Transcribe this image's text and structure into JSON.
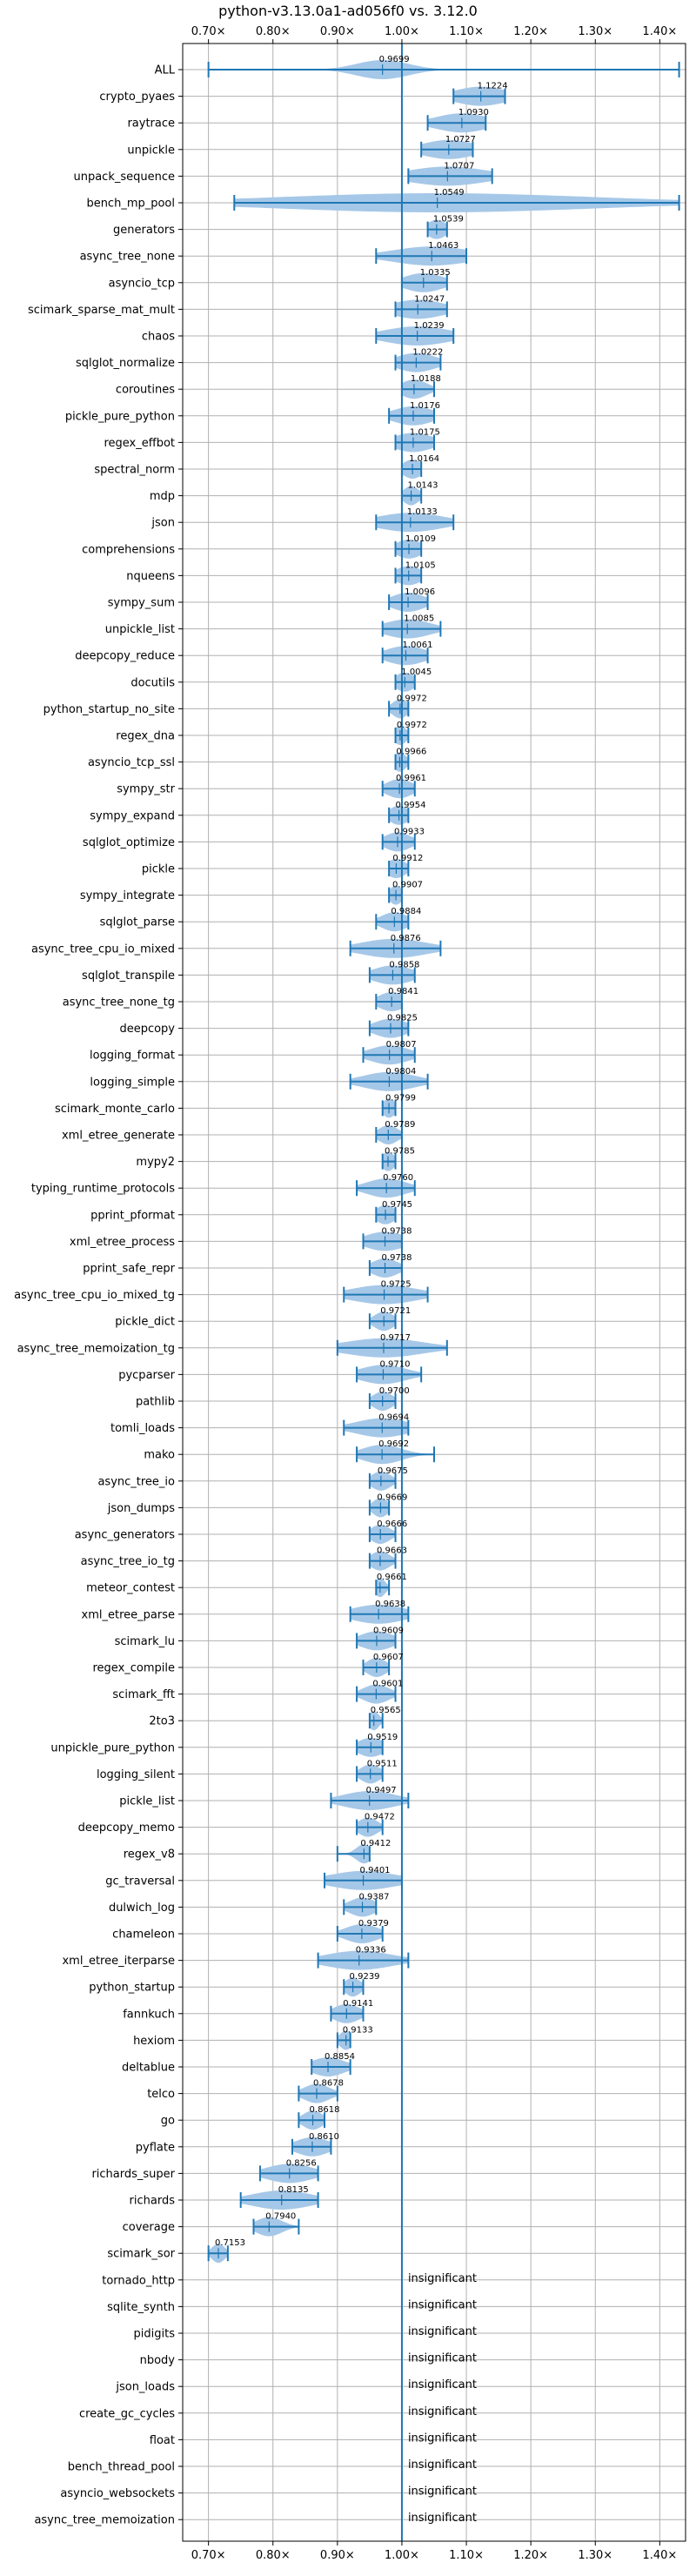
{
  "chart_data": {
    "type": "violin",
    "title": "python-v3.13.0a1-ad056f0 vs. 3.12.0",
    "xlim": [
      0.66,
      1.44
    ],
    "xticks": [
      0.7,
      0.8,
      0.9,
      1.0,
      1.1,
      1.2,
      1.3,
      1.4
    ],
    "xtick_labels": [
      "0.70×",
      "0.80×",
      "0.90×",
      "1.00×",
      "1.10×",
      "1.20×",
      "1.30×",
      "1.40×"
    ],
    "reference_line": 1.0,
    "grid": true,
    "colors": {
      "violin": "#a6c8e8",
      "whisker": "#1f77b4",
      "grid": "#b0b0b0"
    },
    "insignificant_text": "insignificant",
    "benchmarks": [
      {
        "name": "ALL",
        "label": "0.9699",
        "value": 0.9699,
        "min": 0.7,
        "max": 1.43,
        "spread": 0.04
      },
      {
        "name": "crypto_pyaes",
        "label": "1.1224",
        "value": 1.1224,
        "min": 1.08,
        "max": 1.16,
        "spread": 0.04
      },
      {
        "name": "raytrace",
        "label": "1.0930",
        "value": 1.093,
        "min": 1.04,
        "max": 1.13,
        "spread": 0.04
      },
      {
        "name": "unpickle",
        "label": "1.0727",
        "value": 1.0727,
        "min": 1.03,
        "max": 1.11,
        "spread": 0.04
      },
      {
        "name": "unpack_sequence",
        "label": "1.0707",
        "value": 1.0707,
        "min": 1.01,
        "max": 1.14,
        "spread": 0.06
      },
      {
        "name": "bench_mp_pool",
        "label": "1.0549",
        "value": 1.0549,
        "min": 0.74,
        "max": 1.43,
        "spread": 0.24
      },
      {
        "name": "generators",
        "label": "1.0539",
        "value": 1.0539,
        "min": 1.04,
        "max": 1.07,
        "spread": 0.015
      },
      {
        "name": "async_tree_none",
        "label": "1.0463",
        "value": 1.0463,
        "min": 0.96,
        "max": 1.1,
        "spread": 0.06
      },
      {
        "name": "asyncio_tcp",
        "label": "1.0335",
        "value": 1.0335,
        "min": 1.0,
        "max": 1.07,
        "spread": 0.03
      },
      {
        "name": "scimark_sparse_mat_mult",
        "label": "1.0247",
        "value": 1.0247,
        "min": 0.99,
        "max": 1.07,
        "spread": 0.04
      },
      {
        "name": "chaos",
        "label": "1.0239",
        "value": 1.0239,
        "min": 0.96,
        "max": 1.08,
        "spread": 0.05
      },
      {
        "name": "sqlglot_normalize",
        "label": "1.0222",
        "value": 1.0222,
        "min": 0.99,
        "max": 1.06,
        "spread": 0.03
      },
      {
        "name": "coroutines",
        "label": "1.0188",
        "value": 1.0188,
        "min": 1.0,
        "max": 1.05,
        "spread": 0.02
      },
      {
        "name": "pickle_pure_python",
        "label": "1.0176",
        "value": 1.0176,
        "min": 0.98,
        "max": 1.05,
        "spread": 0.03
      },
      {
        "name": "regex_effbot",
        "label": "1.0175",
        "value": 1.0175,
        "min": 0.99,
        "max": 1.05,
        "spread": 0.03
      },
      {
        "name": "spectral_norm",
        "label": "1.0164",
        "value": 1.0164,
        "min": 1.0,
        "max": 1.03,
        "spread": 0.015
      },
      {
        "name": "mdp",
        "label": "1.0143",
        "value": 1.0143,
        "min": 1.0,
        "max": 1.03,
        "spread": 0.012
      },
      {
        "name": "json",
        "label": "1.0133",
        "value": 1.0133,
        "min": 0.96,
        "max": 1.08,
        "spread": 0.05
      },
      {
        "name": "comprehensions",
        "label": "1.0109",
        "value": 1.0109,
        "min": 0.99,
        "max": 1.03,
        "spread": 0.02
      },
      {
        "name": "nqueens",
        "label": "1.0105",
        "value": 1.0105,
        "min": 0.99,
        "max": 1.03,
        "spread": 0.02
      },
      {
        "name": "sympy_sum",
        "label": "1.0096",
        "value": 1.0096,
        "min": 0.98,
        "max": 1.04,
        "spread": 0.025
      },
      {
        "name": "unpickle_list",
        "label": "1.0085",
        "value": 1.0085,
        "min": 0.97,
        "max": 1.06,
        "spread": 0.035
      },
      {
        "name": "deepcopy_reduce",
        "label": "1.0061",
        "value": 1.0061,
        "min": 0.97,
        "max": 1.04,
        "spread": 0.03
      },
      {
        "name": "docutils",
        "label": "1.0045",
        "value": 1.0045,
        "min": 0.99,
        "max": 1.02,
        "spread": 0.015
      },
      {
        "name": "python_startup_no_site",
        "label": "0.9972",
        "value": 0.9972,
        "min": 0.98,
        "max": 1.01,
        "spread": 0.012
      },
      {
        "name": "regex_dna",
        "label": "0.9972",
        "value": 0.9972,
        "min": 0.99,
        "max": 1.01,
        "spread": 0.01
      },
      {
        "name": "asyncio_tcp_ssl",
        "label": "0.9966",
        "value": 0.9966,
        "min": 0.99,
        "max": 1.01,
        "spread": 0.01
      },
      {
        "name": "sympy_str",
        "label": "0.9961",
        "value": 0.9961,
        "min": 0.97,
        "max": 1.02,
        "spread": 0.02
      },
      {
        "name": "sympy_expand",
        "label": "0.9954",
        "value": 0.9954,
        "min": 0.98,
        "max": 1.01,
        "spread": 0.015
      },
      {
        "name": "sqlglot_optimize",
        "label": "0.9933",
        "value": 0.9933,
        "min": 0.97,
        "max": 1.02,
        "spread": 0.02
      },
      {
        "name": "pickle",
        "label": "0.9912",
        "value": 0.9912,
        "min": 0.98,
        "max": 1.01,
        "spread": 0.015
      },
      {
        "name": "sympy_integrate",
        "label": "0.9907",
        "value": 0.9907,
        "min": 0.98,
        "max": 1.0,
        "spread": 0.01
      },
      {
        "name": "sqlglot_parse",
        "label": "0.9884",
        "value": 0.9884,
        "min": 0.96,
        "max": 1.01,
        "spread": 0.02
      },
      {
        "name": "async_tree_cpu_io_mixed",
        "label": "0.9876",
        "value": 0.9876,
        "min": 0.92,
        "max": 1.06,
        "spread": 0.05
      },
      {
        "name": "sqlglot_transpile",
        "label": "0.9858",
        "value": 0.9858,
        "min": 0.95,
        "max": 1.02,
        "spread": 0.03
      },
      {
        "name": "async_tree_none_tg",
        "label": "0.9841",
        "value": 0.9841,
        "min": 0.96,
        "max": 1.0,
        "spread": 0.02
      },
      {
        "name": "deepcopy",
        "label": "0.9825",
        "value": 0.9825,
        "min": 0.95,
        "max": 1.01,
        "spread": 0.025
      },
      {
        "name": "logging_format",
        "label": "0.9807",
        "value": 0.9807,
        "min": 0.94,
        "max": 1.02,
        "spread": 0.03
      },
      {
        "name": "logging_simple",
        "label": "0.9804",
        "value": 0.9804,
        "min": 0.92,
        "max": 1.04,
        "spread": 0.04
      },
      {
        "name": "scimark_monte_carlo",
        "label": "0.9799",
        "value": 0.9799,
        "min": 0.97,
        "max": 0.99,
        "spread": 0.01
      },
      {
        "name": "xml_etree_generate",
        "label": "0.9789",
        "value": 0.9789,
        "min": 0.96,
        "max": 1.0,
        "spread": 0.015
      },
      {
        "name": "mypy2",
        "label": "0.9785",
        "value": 0.9785,
        "min": 0.97,
        "max": 0.99,
        "spread": 0.01
      },
      {
        "name": "typing_runtime_protocols",
        "label": "0.9760",
        "value": 0.976,
        "min": 0.93,
        "max": 1.02,
        "spread": 0.03
      },
      {
        "name": "pprint_pformat",
        "label": "0.9745",
        "value": 0.9745,
        "min": 0.96,
        "max": 0.99,
        "spread": 0.015
      },
      {
        "name": "xml_etree_process",
        "label": "0.9738",
        "value": 0.9738,
        "min": 0.94,
        "max": 1.0,
        "spread": 0.03
      },
      {
        "name": "pprint_safe_repr",
        "label": "0.9738",
        "value": 0.9738,
        "min": 0.95,
        "max": 1.0,
        "spread": 0.02
      },
      {
        "name": "async_tree_cpu_io_mixed_tg",
        "label": "0.9725",
        "value": 0.9725,
        "min": 0.91,
        "max": 1.04,
        "spread": 0.05
      },
      {
        "name": "pickle_dict",
        "label": "0.9721",
        "value": 0.9721,
        "min": 0.95,
        "max": 0.99,
        "spread": 0.015
      },
      {
        "name": "async_tree_memoization_tg",
        "label": "0.9717",
        "value": 0.9717,
        "min": 0.9,
        "max": 1.07,
        "spread": 0.06
      },
      {
        "name": "pycparser",
        "label": "0.9710",
        "value": 0.971,
        "min": 0.93,
        "max": 1.03,
        "spread": 0.035
      },
      {
        "name": "pathlib",
        "label": "0.9700",
        "value": 0.97,
        "min": 0.95,
        "max": 0.99,
        "spread": 0.015
      },
      {
        "name": "tomli_loads",
        "label": "0.9694",
        "value": 0.9694,
        "min": 0.91,
        "max": 1.01,
        "spread": 0.04
      },
      {
        "name": "mako",
        "label": "0.9692",
        "value": 0.9692,
        "min": 0.93,
        "max": 1.05,
        "spread": 0.03
      },
      {
        "name": "async_tree_io",
        "label": "0.9675",
        "value": 0.9675,
        "min": 0.95,
        "max": 0.99,
        "spread": 0.015
      },
      {
        "name": "json_dumps",
        "label": "0.9669",
        "value": 0.9669,
        "min": 0.95,
        "max": 0.98,
        "spread": 0.012
      },
      {
        "name": "async_generators",
        "label": "0.9666",
        "value": 0.9666,
        "min": 0.95,
        "max": 0.99,
        "spread": 0.015
      },
      {
        "name": "async_tree_io_tg",
        "label": "0.9663",
        "value": 0.9663,
        "min": 0.95,
        "max": 0.99,
        "spread": 0.015
      },
      {
        "name": "meteor_contest",
        "label": "0.9661",
        "value": 0.9661,
        "min": 0.96,
        "max": 0.98,
        "spread": 0.008
      },
      {
        "name": "xml_etree_parse",
        "label": "0.9638",
        "value": 0.9638,
        "min": 0.92,
        "max": 1.01,
        "spread": 0.04
      },
      {
        "name": "scimark_lu",
        "label": "0.9609",
        "value": 0.9609,
        "min": 0.93,
        "max": 0.99,
        "spread": 0.025
      },
      {
        "name": "regex_compile",
        "label": "0.9607",
        "value": 0.9607,
        "min": 0.94,
        "max": 0.98,
        "spread": 0.015
      },
      {
        "name": "scimark_fft",
        "label": "0.9601",
        "value": 0.9601,
        "min": 0.93,
        "max": 0.99,
        "spread": 0.02
      },
      {
        "name": "2to3",
        "label": "0.9565",
        "value": 0.9565,
        "min": 0.95,
        "max": 0.97,
        "spread": 0.008
      },
      {
        "name": "unpickle_pure_python",
        "label": "0.9519",
        "value": 0.9519,
        "min": 0.93,
        "max": 0.97,
        "spread": 0.02
      },
      {
        "name": "logging_silent",
        "label": "0.9511",
        "value": 0.9511,
        "min": 0.93,
        "max": 0.97,
        "spread": 0.015
      },
      {
        "name": "pickle_list",
        "label": "0.9497",
        "value": 0.9497,
        "min": 0.89,
        "max": 1.01,
        "spread": 0.04
      },
      {
        "name": "deepcopy_memo",
        "label": "0.9472",
        "value": 0.9472,
        "min": 0.93,
        "max": 0.97,
        "spread": 0.015
      },
      {
        "name": "regex_v8",
        "label": "0.9412",
        "value": 0.9412,
        "min": 0.9,
        "max": 0.95,
        "spread": 0.012
      },
      {
        "name": "gc_traversal",
        "label": "0.9401",
        "value": 0.9401,
        "min": 0.88,
        "max": 1.0,
        "spread": 0.05
      },
      {
        "name": "dulwich_log",
        "label": "0.9387",
        "value": 0.9387,
        "min": 0.91,
        "max": 0.96,
        "spread": 0.02
      },
      {
        "name": "chameleon",
        "label": "0.9379",
        "value": 0.9379,
        "min": 0.9,
        "max": 0.97,
        "spread": 0.025
      },
      {
        "name": "xml_etree_iterparse",
        "label": "0.9336",
        "value": 0.9336,
        "min": 0.87,
        "max": 1.01,
        "spread": 0.05
      },
      {
        "name": "python_startup",
        "label": "0.9239",
        "value": 0.9239,
        "min": 0.91,
        "max": 0.94,
        "spread": 0.012
      },
      {
        "name": "fannkuch",
        "label": "0.9141",
        "value": 0.9141,
        "min": 0.89,
        "max": 0.94,
        "spread": 0.02
      },
      {
        "name": "hexiom",
        "label": "0.9133",
        "value": 0.9133,
        "min": 0.9,
        "max": 0.92,
        "spread": 0.01
      },
      {
        "name": "deltablue",
        "label": "0.8854",
        "value": 0.8854,
        "min": 0.86,
        "max": 0.92,
        "spread": 0.025
      },
      {
        "name": "telco",
        "label": "0.8678",
        "value": 0.8678,
        "min": 0.84,
        "max": 0.9,
        "spread": 0.02
      },
      {
        "name": "go",
        "label": "0.8618",
        "value": 0.8618,
        "min": 0.84,
        "max": 0.88,
        "spread": 0.015
      },
      {
        "name": "pyflate",
        "label": "0.8610",
        "value": 0.861,
        "min": 0.83,
        "max": 0.89,
        "spread": 0.025
      },
      {
        "name": "richards_super",
        "label": "0.8256",
        "value": 0.8256,
        "min": 0.78,
        "max": 0.87,
        "spread": 0.035
      },
      {
        "name": "richards",
        "label": "0.8135",
        "value": 0.8135,
        "min": 0.75,
        "max": 0.87,
        "spread": 0.045
      },
      {
        "name": "coverage",
        "label": "0.7940",
        "value": 0.794,
        "min": 0.77,
        "max": 0.84,
        "spread": 0.02
      },
      {
        "name": "scimark_sor",
        "label": "0.7153",
        "value": 0.7153,
        "min": 0.7,
        "max": 0.73,
        "spread": 0.01
      },
      {
        "name": "tornado_http",
        "insignificant": true
      },
      {
        "name": "sqlite_synth",
        "insignificant": true
      },
      {
        "name": "pidigits",
        "insignificant": true
      },
      {
        "name": "nbody",
        "insignificant": true
      },
      {
        "name": "json_loads",
        "insignificant": true
      },
      {
        "name": "create_gc_cycles",
        "insignificant": true
      },
      {
        "name": "float",
        "insignificant": true
      },
      {
        "name": "bench_thread_pool",
        "insignificant": true
      },
      {
        "name": "asyncio_websockets",
        "insignificant": true
      },
      {
        "name": "async_tree_memoization",
        "insignificant": true
      }
    ]
  }
}
